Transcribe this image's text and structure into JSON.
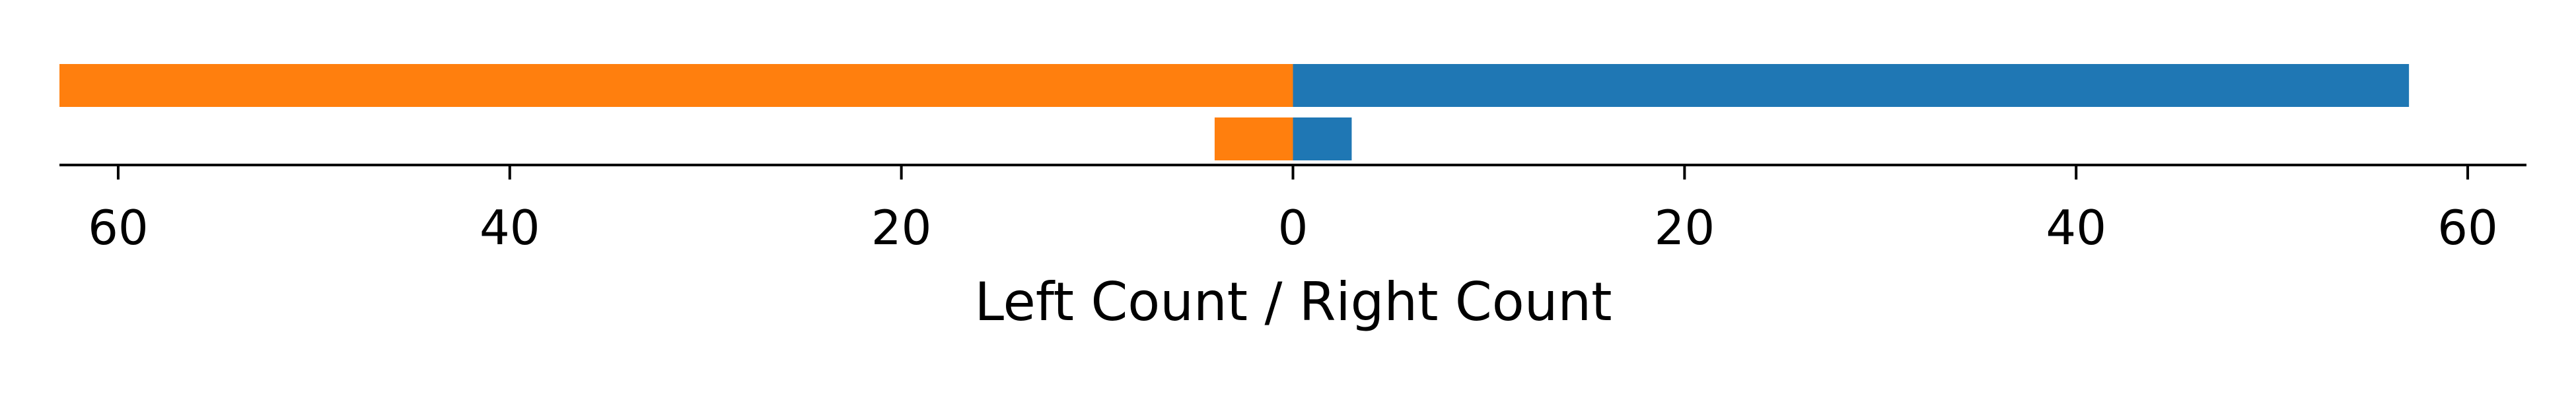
{
  "chart_data": {
    "type": "bar",
    "orientation": "horizontal-diverging",
    "xlabel": "Left Count / Right Count",
    "xlim": [
      -63,
      63
    ],
    "x_ticks": [
      -60,
      -40,
      -20,
      0,
      20,
      40,
      60
    ],
    "x_tick_labels": [
      "60",
      "40",
      "20",
      "0",
      "20",
      "40",
      "60"
    ],
    "grid": false,
    "legend": "none",
    "rows": [
      {
        "left": 63,
        "right": 57
      },
      {
        "left": 4,
        "right": 3
      }
    ],
    "colors": {
      "left": "#ff7f0e",
      "right": "#1f77b4"
    }
  }
}
